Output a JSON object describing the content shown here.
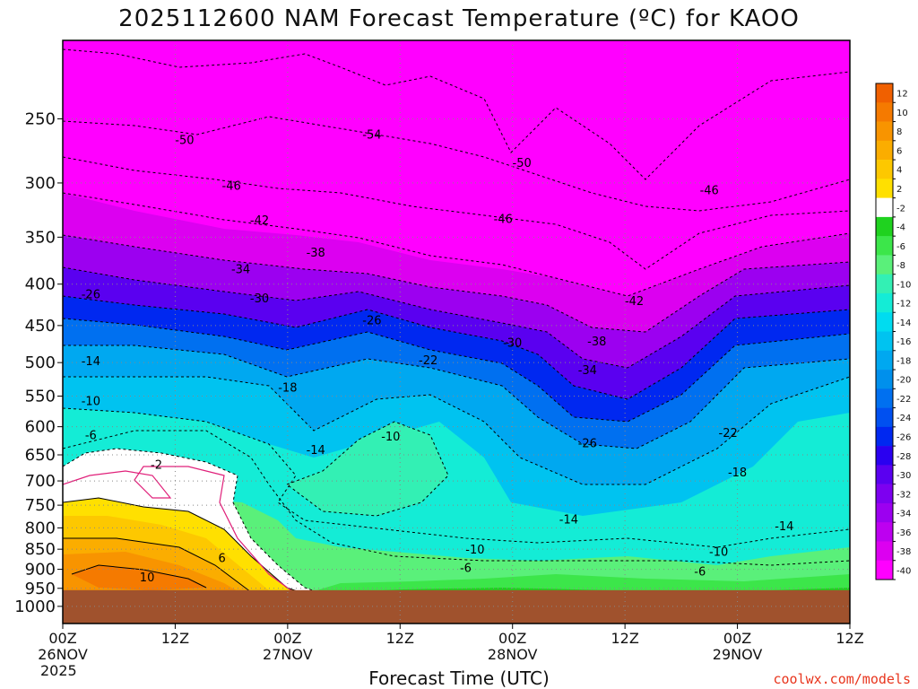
{
  "chart_data": {
    "type": "contour",
    "title": "2025112600 NAM Forecast Temperature (ºC) for KAOO",
    "xlabel": "Forecast Time (UTC)",
    "ylabel": "",
    "credit": "coolwx.com/models",
    "y_scale": "log-pressure",
    "y_ticks": [
      250,
      300,
      350,
      400,
      450,
      500,
      550,
      600,
      650,
      700,
      750,
      800,
      850,
      900,
      950,
      1000
    ],
    "ylim": [
      1050,
      200
    ],
    "x_ticks": [
      {
        "hour": 0,
        "line1": "00Z",
        "line2": "26NOV",
        "line3": "2025"
      },
      {
        "hour": 12,
        "line1": "12Z",
        "line2": "",
        "line3": ""
      },
      {
        "hour": 24,
        "line1": "00Z",
        "line2": "27NOV",
        "line3": ""
      },
      {
        "hour": 36,
        "line1": "12Z",
        "line2": "",
        "line3": ""
      },
      {
        "hour": 48,
        "line1": "00Z",
        "line2": "28NOV",
        "line3": ""
      },
      {
        "hour": 60,
        "line1": "12Z",
        "line2": "",
        "line3": ""
      },
      {
        "hour": 72,
        "line1": "00Z",
        "line2": "29NOV",
        "line3": ""
      },
      {
        "hour": 84,
        "line1": "12Z",
        "line2": "",
        "line3": ""
      }
    ],
    "xlim": [
      0,
      84
    ],
    "colorbar": {
      "labels": [
        12,
        10,
        8,
        6,
        4,
        2,
        -2,
        -4,
        -6,
        -8,
        -10,
        -12,
        -14,
        -16,
        -18,
        -20,
        -22,
        -24,
        -26,
        -28,
        -30,
        -32,
        -34,
        -36,
        -38,
        -40
      ],
      "colors": [
        "#f06000",
        "#f57a00",
        "#f89400",
        "#fbad00",
        "#fdc800",
        "#ffe000",
        "#ffffff",
        "#1fd21f",
        "#3ce64a",
        "#5af07a",
        "#33f0b4",
        "#14ecd6",
        "#00dcf0",
        "#00c3f0",
        "#00a8f0",
        "#0090ec",
        "#0070f0",
        "#0050f0",
        "#0028f0",
        "#2a00f0",
        "#5a00f0",
        "#7d00f0",
        "#9c00f0",
        "#bd00f0",
        "#dc00f0",
        "#ff00ff"
      ]
    },
    "contour_labels": [
      {
        "value": "-50",
        "hour": 13,
        "p": 265
      },
      {
        "value": "-54",
        "hour": 33,
        "p": 261
      },
      {
        "value": "-50",
        "hour": 49,
        "p": 283
      },
      {
        "value": "-46",
        "hour": 18,
        "p": 302
      },
      {
        "value": "-46",
        "hour": 47,
        "p": 332
      },
      {
        "value": "-46",
        "hour": 69,
        "p": 306
      },
      {
        "value": "-42",
        "hour": 21,
        "p": 333
      },
      {
        "value": "-38",
        "hour": 27,
        "p": 365
      },
      {
        "value": "-34",
        "hour": 19,
        "p": 383
      },
      {
        "value": "-30",
        "hour": 21,
        "p": 416
      },
      {
        "value": "-26",
        "hour": 3,
        "p": 411
      },
      {
        "value": "-26",
        "hour": 33,
        "p": 443
      },
      {
        "value": "-22",
        "hour": 39,
        "p": 496
      },
      {
        "value": "-30",
        "hour": 48,
        "p": 472
      },
      {
        "value": "-42",
        "hour": 61,
        "p": 419
      },
      {
        "value": "-38",
        "hour": 57,
        "p": 470
      },
      {
        "value": "-34",
        "hour": 56,
        "p": 510
      },
      {
        "value": "-26",
        "hour": 56,
        "p": 628
      },
      {
        "value": "-22",
        "hour": 71,
        "p": 610
      },
      {
        "value": "-18",
        "hour": 24,
        "p": 536
      },
      {
        "value": "-18",
        "hour": 72,
        "p": 682
      },
      {
        "value": "-14",
        "hour": 3,
        "p": 497
      },
      {
        "value": "-14",
        "hour": 27,
        "p": 640
      },
      {
        "value": "-14",
        "hour": 54,
        "p": 780
      },
      {
        "value": "-14",
        "hour": 77,
        "p": 795
      },
      {
        "value": "-10",
        "hour": 3,
        "p": 557
      },
      {
        "value": "-10",
        "hour": 35,
        "p": 616
      },
      {
        "value": "-10",
        "hour": 44,
        "p": 850
      },
      {
        "value": "-10",
        "hour": 70,
        "p": 855
      },
      {
        "value": "-6",
        "hour": 3,
        "p": 614
      },
      {
        "value": "-6",
        "hour": 43,
        "p": 895
      },
      {
        "value": "-6",
        "hour": 68,
        "p": 905
      },
      {
        "value": "-2",
        "hour": 10,
        "p": 668
      },
      {
        "value": "6",
        "hour": 17,
        "p": 870
      },
      {
        "value": "10",
        "hour": 9,
        "p": 920
      }
    ],
    "ground_top_p": 955
  }
}
